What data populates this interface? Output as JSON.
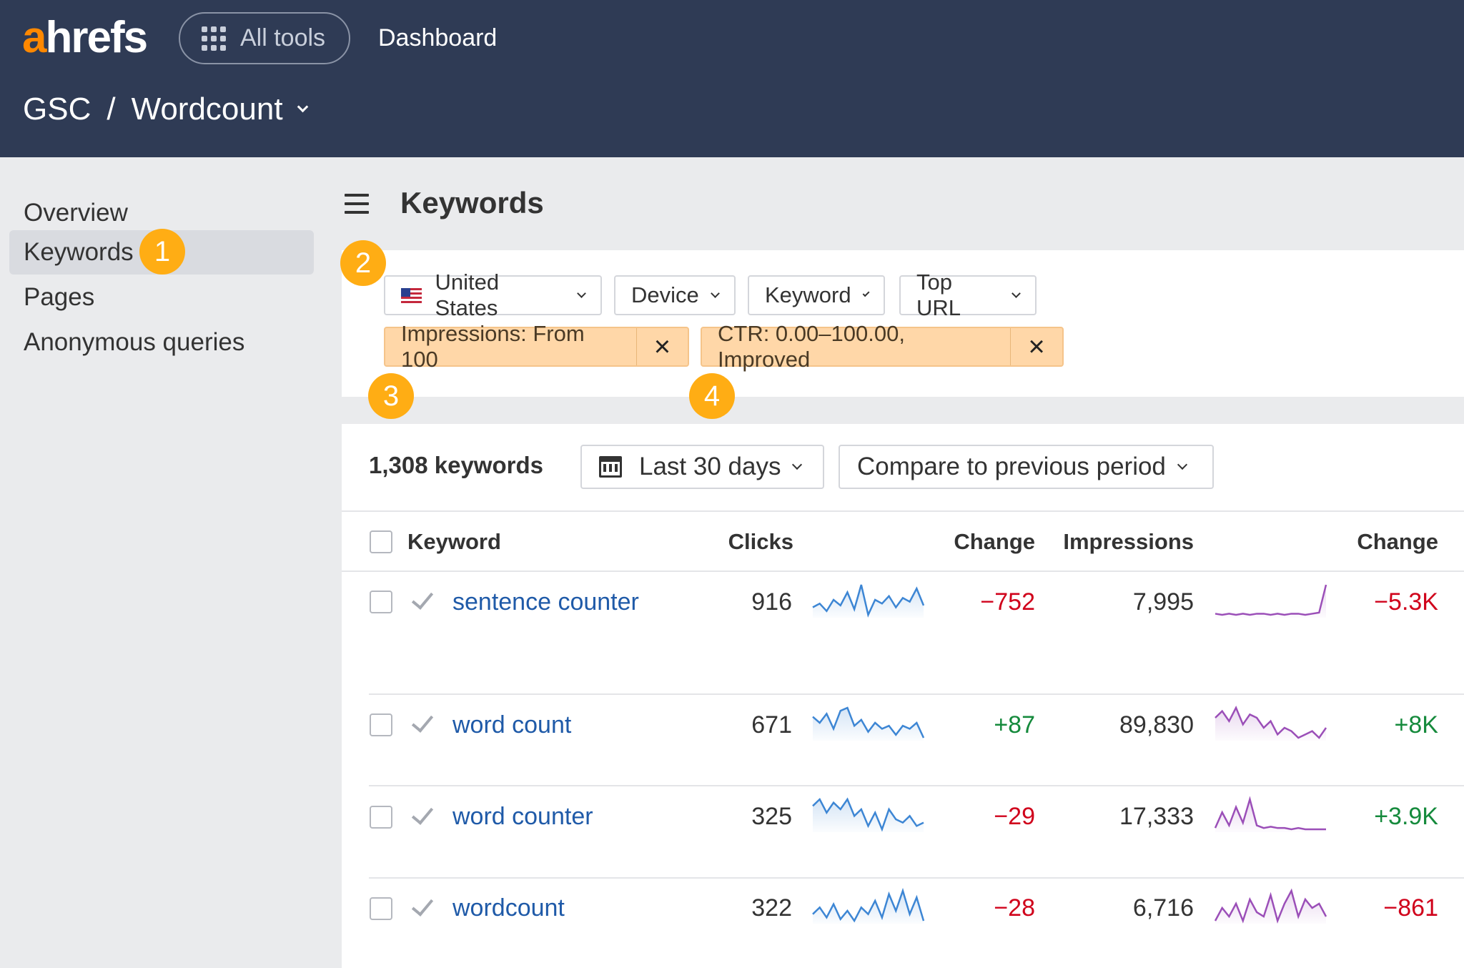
{
  "header": {
    "logo_prefix": "a",
    "logo_rest": "hrefs",
    "all_tools_label": "All tools",
    "dashboard_link": "Dashboard",
    "breadcrumb": {
      "project": "GSC",
      "separator": "/",
      "site": "Wordcount"
    }
  },
  "sidebar": {
    "items": [
      {
        "label": "Overview",
        "active": false
      },
      {
        "label": "Keywords",
        "active": true
      },
      {
        "label": "Pages",
        "active": false
      },
      {
        "label": "Anonymous queries",
        "active": false
      }
    ]
  },
  "annotations": [
    "1",
    "2",
    "3",
    "4"
  ],
  "main": {
    "title": "Keywords",
    "filters": {
      "country": "United States",
      "device": "Device",
      "keyword": "Keyword",
      "top_url": "Top URL"
    },
    "active_filters": [
      {
        "label": "Impressions: From 100"
      },
      {
        "label": "CTR: 0.00–100.00, Improved"
      }
    ],
    "remove_icon": "×",
    "keyword_count": "1,308 keywords",
    "date_range": "Last 30 days",
    "compare": "Compare to previous period",
    "table": {
      "columns": {
        "keyword": "Keyword",
        "clicks": "Clicks",
        "clicks_change": "Change",
        "impressions": "Impressions",
        "impressions_change": "Change"
      },
      "rows": [
        {
          "keyword": "sentence counter",
          "clicks": "916",
          "clicks_change": "−752",
          "impressions": "7,995",
          "impressions_change": "−5.3K",
          "clicks_trend": [
            10,
            12,
            8,
            14,
            11,
            18,
            9,
            22,
            6,
            14,
            12,
            16,
            10,
            15,
            13,
            20,
            11
          ],
          "impressions_trend": [
            4,
            3,
            4,
            3,
            4,
            3,
            4,
            4,
            3,
            4,
            3,
            4,
            4,
            3,
            4,
            5,
            30
          ]
        },
        {
          "keyword": "word count",
          "clicks": "671",
          "clicks_change": "+87",
          "impressions": "89,830",
          "impressions_change": "+8K",
          "clicks_trend": [
            18,
            14,
            20,
            10,
            22,
            24,
            12,
            16,
            8,
            14,
            10,
            12,
            6,
            12,
            10,
            14,
            4
          ],
          "impressions_trend": [
            16,
            20,
            14,
            22,
            12,
            18,
            16,
            10,
            14,
            6,
            10,
            8,
            4,
            6,
            8,
            4,
            10
          ]
        },
        {
          "keyword": "word counter",
          "clicks": "325",
          "clicks_change": "−29",
          "impressions": "17,333",
          "impressions_change": "+3.9K",
          "clicks_trend": [
            20,
            24,
            16,
            22,
            18,
            24,
            14,
            18,
            8,
            16,
            6,
            18,
            12,
            10,
            14,
            8,
            10
          ],
          "impressions_trend": [
            4,
            16,
            6,
            20,
            8,
            26,
            6,
            4,
            5,
            4,
            4,
            3,
            4,
            3,
            3,
            3,
            3
          ]
        },
        {
          "keyword": "wordcount",
          "clicks": "322",
          "clicks_change": "−28",
          "impressions": "6,716",
          "impressions_change": "−861",
          "clicks_trend": [
            8,
            12,
            6,
            14,
            5,
            10,
            4,
            12,
            8,
            16,
            6,
            20,
            10,
            22,
            8,
            18,
            4
          ],
          "impressions_trend": [
            10,
            16,
            12,
            18,
            10,
            20,
            14,
            12,
            22,
            10,
            18,
            24,
            12,
            20,
            16,
            18,
            12
          ]
        }
      ]
    }
  },
  "colors": {
    "header_bg": "#2f3b55",
    "accent_orange": "#ff8800",
    "badge": "#ffad14",
    "link": "#1f5aa8",
    "negative": "#d0021b",
    "positive": "#158a3c",
    "clicks_line": "#3d86d4",
    "impressions_line": "#9b4fb8"
  }
}
